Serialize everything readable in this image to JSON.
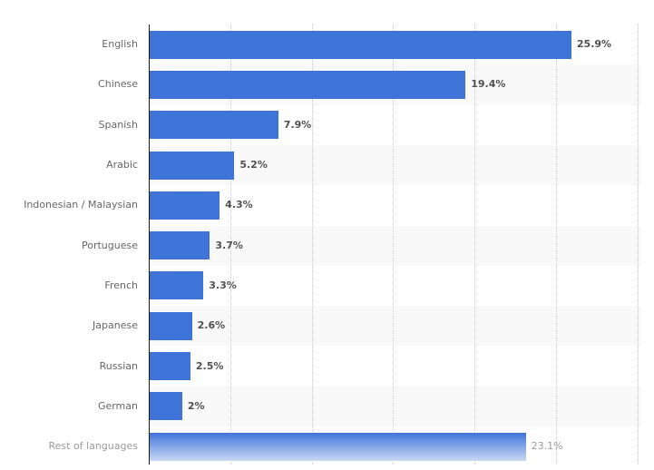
{
  "chart_data": {
    "type": "bar",
    "orientation": "horizontal",
    "title": "",
    "xlabel": "",
    "ylabel": "",
    "categories": [
      "English",
      "Chinese",
      "Spanish",
      "Arabic",
      "Indonesian / Malaysian",
      "Portuguese",
      "French",
      "Japanese",
      "Russian",
      "German",
      "Rest of languages"
    ],
    "values": [
      25.9,
      19.4,
      7.9,
      5.2,
      4.3,
      3.7,
      3.3,
      2.6,
      2.5,
      2,
      23.1
    ],
    "value_labels": [
      "25.9%",
      "19.4%",
      "7.9%",
      "5.2%",
      "4.3%",
      "3.7%",
      "3.3%",
      "2.6%",
      "2.5%",
      "2%",
      "23.1%"
    ],
    "unit": "%",
    "xlim": [
      0,
      30
    ],
    "grid": true,
    "grid_step": 5,
    "colors": {
      "bar": "#3e73d8",
      "label": "#666666",
      "value": "#505050",
      "muted": "#9a9a9a",
      "band_alt": "#f9f9f9"
    }
  },
  "rows": [
    {
      "label": "English",
      "value": 25.9,
      "text": "25.9%"
    },
    {
      "label": "Chinese",
      "value": 19.4,
      "text": "19.4%"
    },
    {
      "label": "Spanish",
      "value": 7.9,
      "text": "7.9%"
    },
    {
      "label": "Arabic",
      "value": 5.2,
      "text": "5.2%"
    },
    {
      "label": "Indonesian / Malaysian",
      "value": 4.3,
      "text": "4.3%"
    },
    {
      "label": "Portuguese",
      "value": 3.7,
      "text": "3.7%"
    },
    {
      "label": "French",
      "value": 3.3,
      "text": "3.3%"
    },
    {
      "label": "Japanese",
      "value": 2.6,
      "text": "2.6%"
    },
    {
      "label": "Russian",
      "value": 2.5,
      "text": "2.5%"
    },
    {
      "label": "German",
      "value": 2,
      "text": "2%"
    },
    {
      "label": "Rest of languages",
      "value": 23.1,
      "text": "23.1%",
      "muted": true
    }
  ]
}
